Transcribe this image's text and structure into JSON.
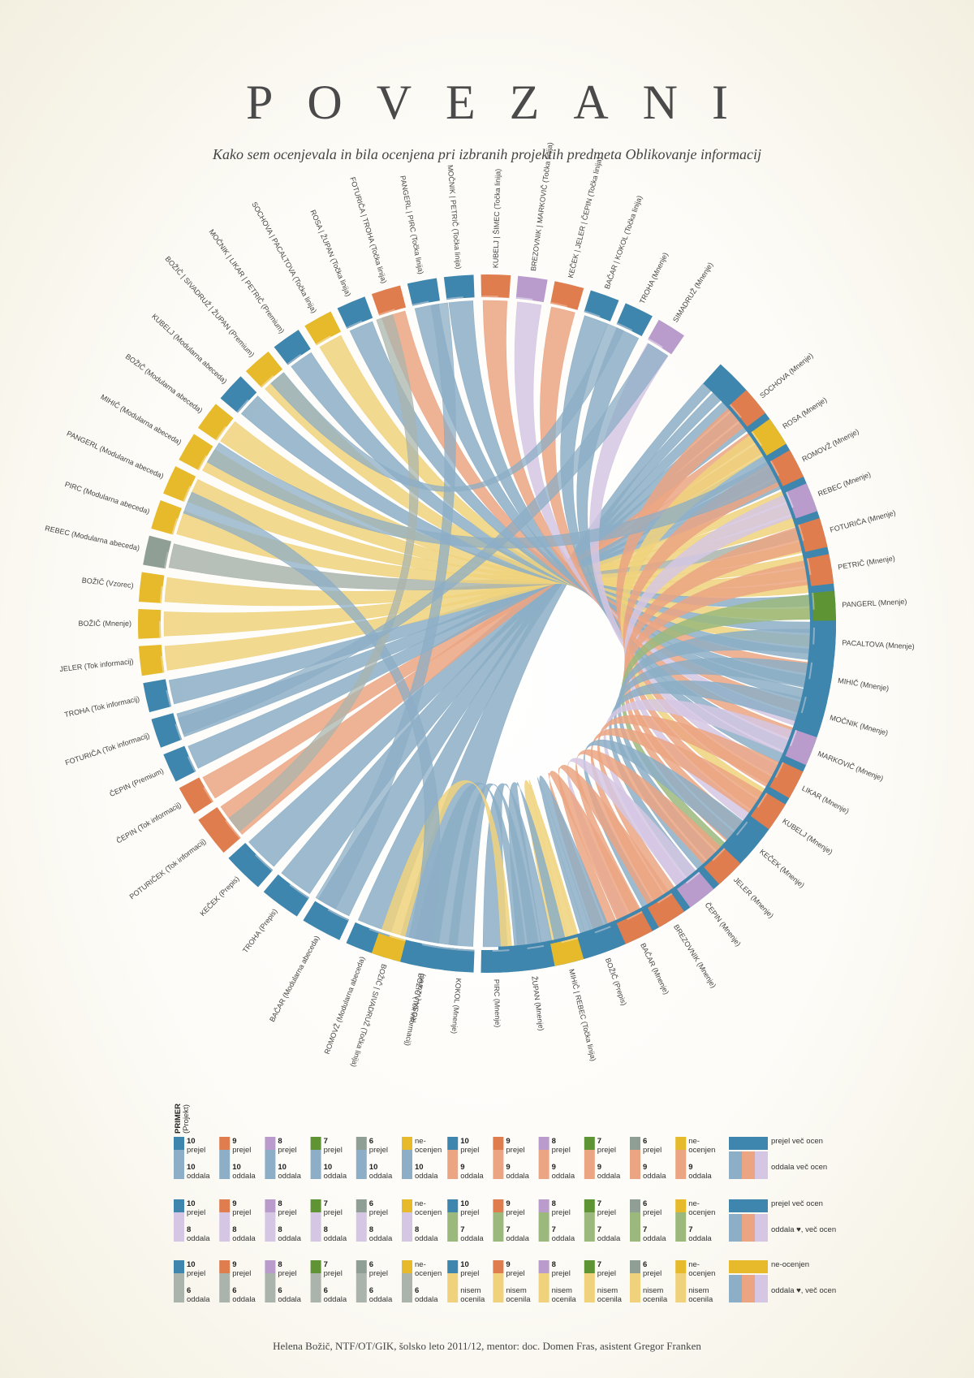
{
  "header": {
    "title": "POVEZANI",
    "subtitle": "Kako sem ocenjevala in bila ocenjena pri izbranih projektih predmeta Oblikovanje informacij"
  },
  "footer": "Helena Božič, NTF/OT/GIK, šolsko leto 2011/12, mentor: doc. Domen Fras, asistent Gregor Franken",
  "colors": {
    "g10": "#3e86ad",
    "g9": "#e07d4e",
    "g8": "#b99ccc",
    "g7": "#5f9434",
    "g6": "#8f9f95",
    "gne": "#e6ba2a",
    "o10": "#8caec6",
    "o9": "#eba583",
    "o8": "#d5c7e3",
    "o7": "#9bb97c",
    "o6": "#aab4ad",
    "one": "#f0d27c"
  },
  "chart_data": {
    "type": "chord",
    "arc_labels": [
      "BOŽIČ (Mnenje)",
      "ROSA (Vzorec)",
      "ROMOVŽ (Modularna abeceda)",
      "BAČAR (Modularna abeceda)",
      "TROHA (Prepis)",
      "KEČEK (Prepis)",
      "POTURIČEK (Tok informacij)",
      "ČEPIN (Tok informacij)",
      "ČEPIN (Premium)",
      "FOTURIČA (Tok informacij)",
      "TROHA (Tok informacij)",
      "JELER (Tok informacij)",
      "BOŽIČ (Mnenje)",
      "BOŽIČ (Vzorec)",
      "REBEC (Modularna abeceda)",
      "PIRC (Modularna abeceda)",
      "PANGERL (Modularna abeceda)",
      "MIHIČ (Modularna abeceda)",
      "BOŽIČ (Modularna abeceda)",
      "KUBELJ (Modularna abeceda)",
      "BOŽIČ | SIVADRUŽ | ŽUPAN (Premium)",
      "MOČNIK | LIKAR | PETRIČ (Premium)",
      "SOCHOVA | PACALTOVA (Točka linija)",
      "ROSA | ŽUPAN (Točka linija)",
      "FOTURIČA | TROHA (Točka linija)",
      "PANGERL | PIRC (Točka linija)",
      "MOČNIK | PETRIČ (Točka linija)",
      "KUBELJ | ŠIMEC (Točka linija)",
      "BREZOVNIK | MARKOVIČ (Točka linija)",
      "KEČEK | JELER | ČEPIN (Točka linija)",
      "BAČAR | KOKOL (Točka linija)",
      "TROHA (Mnenje)",
      "SIMADRUŽ (Mnenje)",
      "SOCHOVA (Mnenje)",
      "ROSA (Mnenje)",
      "ROMOVŽ (Mnenje)",
      "REBEC (Mnenje)",
      "FOTURIČA (Mnenje)",
      "PETRIČ (Mnenje)",
      "PANGERL (Mnenje)",
      "PACALTOVA (Mnenje)",
      "MIHIČ (Mnenje)",
      "MOČNIK (Mnenje)",
      "MARKOVIČ (Mnenje)",
      "LIKAR (Mnenje)",
      "KUBELJ (Mnenje)",
      "KEČEK (Mnenje)",
      "JELER (Mnenje)",
      "ČEPIN (Mnenje)",
      "BREZOVNIK (Mnenje)",
      "BAČAR (Mnenje)",
      "BOŽIČ (Prepis)",
      "MIHIČ | REBEC (Točka linija)",
      "ŽUPAN (Mnenje)",
      "PIRC (Mnenje)",
      "KOKOL (Mnenje)",
      "BOŽIČ (Tok informacij)",
      "BOŽIČ | SIVADRUŽ (Točka linija)"
    ]
  },
  "legend": {
    "primer_label": "PRIMER",
    "primer_sub": "(Projekt)",
    "rows": [
      {
        "cells": [
          {
            "top": "g10",
            "bot": "o10",
            "tn": "10",
            "tl": "prejel",
            "bn": "10",
            "bl": "oddala"
          },
          {
            "top": "g9",
            "bot": "o10",
            "tn": "9",
            "tl": "prejel",
            "bn": "10",
            "bl": "oddala"
          },
          {
            "top": "g8",
            "bot": "o10",
            "tn": "8",
            "tl": "prejel",
            "bn": "10",
            "bl": "oddala"
          },
          {
            "top": "g7",
            "bot": "o10",
            "tn": "7",
            "tl": "prejel",
            "bn": "10",
            "bl": "oddala"
          },
          {
            "top": "g6",
            "bot": "o10",
            "tn": "6",
            "tl": "prejel",
            "bn": "10",
            "bl": "oddala"
          },
          {
            "top": "gne",
            "bot": "o10",
            "tn": "",
            "tl": "ne-\nocenjen",
            "bn": "10",
            "bl": "oddala"
          },
          {
            "top": "g10",
            "bot": "o9",
            "tn": "10",
            "tl": "prejel",
            "bn": "9",
            "bl": "oddala"
          },
          {
            "top": "g9",
            "bot": "o9",
            "tn": "9",
            "tl": "prejel",
            "bn": "9",
            "bl": "oddala"
          },
          {
            "top": "g8",
            "bot": "o9",
            "tn": "8",
            "tl": "prejel",
            "bn": "9",
            "bl": "oddala"
          },
          {
            "top": "g7",
            "bot": "o9",
            "tn": "7",
            "tl": "prejel",
            "bn": "9",
            "bl": "oddala"
          },
          {
            "top": "g6",
            "bot": "o9",
            "tn": "6",
            "tl": "prejel",
            "bn": "9",
            "bl": "oddala"
          },
          {
            "top": "gne",
            "bot": "o9",
            "tn": "",
            "tl": "ne-\nocenjen",
            "bn": "9",
            "bl": "oddala"
          }
        ],
        "key_top": "prejel več ocen",
        "key_bot": "oddala več ocen"
      },
      {
        "cells": [
          {
            "top": "g10",
            "bot": "o8",
            "tn": "10",
            "tl": "prejel",
            "bn": "8",
            "bl": "oddala"
          },
          {
            "top": "g9",
            "bot": "o8",
            "tn": "9",
            "tl": "prejel",
            "bn": "8",
            "bl": "oddala"
          },
          {
            "top": "g8",
            "bot": "o8",
            "tn": "8",
            "tl": "prejel",
            "bn": "8",
            "bl": "oddala"
          },
          {
            "top": "g7",
            "bot": "o8",
            "tn": "7",
            "tl": "prejel",
            "bn": "8",
            "bl": "oddala"
          },
          {
            "top": "g6",
            "bot": "o8",
            "tn": "6",
            "tl": "prejel",
            "bn": "8",
            "bl": "oddala"
          },
          {
            "top": "gne",
            "bot": "o8",
            "tn": "",
            "tl": "ne-\nocenjen",
            "bn": "8",
            "bl": "oddala"
          },
          {
            "top": "g10",
            "bot": "o7",
            "tn": "10",
            "tl": "prejel",
            "bn": "7",
            "bl": "oddala"
          },
          {
            "top": "g9",
            "bot": "o7",
            "tn": "9",
            "tl": "prejel",
            "bn": "7",
            "bl": "oddala"
          },
          {
            "top": "g8",
            "bot": "o7",
            "tn": "8",
            "tl": "prejel",
            "bn": "7",
            "bl": "oddala"
          },
          {
            "top": "g7",
            "bot": "o7",
            "tn": "7",
            "tl": "prejel",
            "bn": "7",
            "bl": "oddala"
          },
          {
            "top": "g6",
            "bot": "o7",
            "tn": "6",
            "tl": "prejel",
            "bn": "7",
            "bl": "oddala"
          },
          {
            "top": "gne",
            "bot": "o7",
            "tn": "",
            "tl": "ne-\nocenjen",
            "bn": "7",
            "bl": "oddala"
          }
        ],
        "key_top": "prejel več ocen",
        "key_bot": "oddala ♥, več ocen"
      },
      {
        "cells": [
          {
            "top": "g10",
            "bot": "o6",
            "tn": "10",
            "tl": "prejel",
            "bn": "6",
            "bl": "oddala"
          },
          {
            "top": "g9",
            "bot": "o6",
            "tn": "9",
            "tl": "prejel",
            "bn": "6",
            "bl": "oddala"
          },
          {
            "top": "g8",
            "bot": "o6",
            "tn": "8",
            "tl": "prejel",
            "bn": "6",
            "bl": "oddala"
          },
          {
            "top": "g7",
            "bot": "o6",
            "tn": "7",
            "tl": "prejel",
            "bn": "6",
            "bl": "oddala"
          },
          {
            "top": "g6",
            "bot": "o6",
            "tn": "6",
            "tl": "prejel",
            "bn": "6",
            "bl": "oddala"
          },
          {
            "top": "gne",
            "bot": "o6",
            "tn": "",
            "tl": "ne-\nocenjen",
            "bn": "6",
            "bl": "oddala"
          },
          {
            "top": "g10",
            "bot": "one",
            "tn": "10",
            "tl": "prejel",
            "bn": "",
            "bl": "nisem\nocenila"
          },
          {
            "top": "g9",
            "bot": "one",
            "tn": "9",
            "tl": "prejel",
            "bn": "",
            "bl": "nisem\nocenila"
          },
          {
            "top": "g8",
            "bot": "one",
            "tn": "8",
            "tl": "prejel",
            "bn": "",
            "bl": "nisem\nocenila"
          },
          {
            "top": "g7",
            "bot": "one",
            "tn": "7",
            "tl": "prejel",
            "bn": "",
            "bl": "nisem\nocenila"
          },
          {
            "top": "g6",
            "bot": "one",
            "tn": "6",
            "tl": "prejel",
            "bn": "",
            "bl": "nisem\nocenila"
          },
          {
            "top": "gne",
            "bot": "one",
            "tn": "",
            "tl": "ne-\nocenjen",
            "bn": "",
            "bl": "nisem\nocenila"
          }
        ],
        "key_top": "ne-ocenjen",
        "key_bot": "oddala ♥, več ocen"
      }
    ]
  }
}
